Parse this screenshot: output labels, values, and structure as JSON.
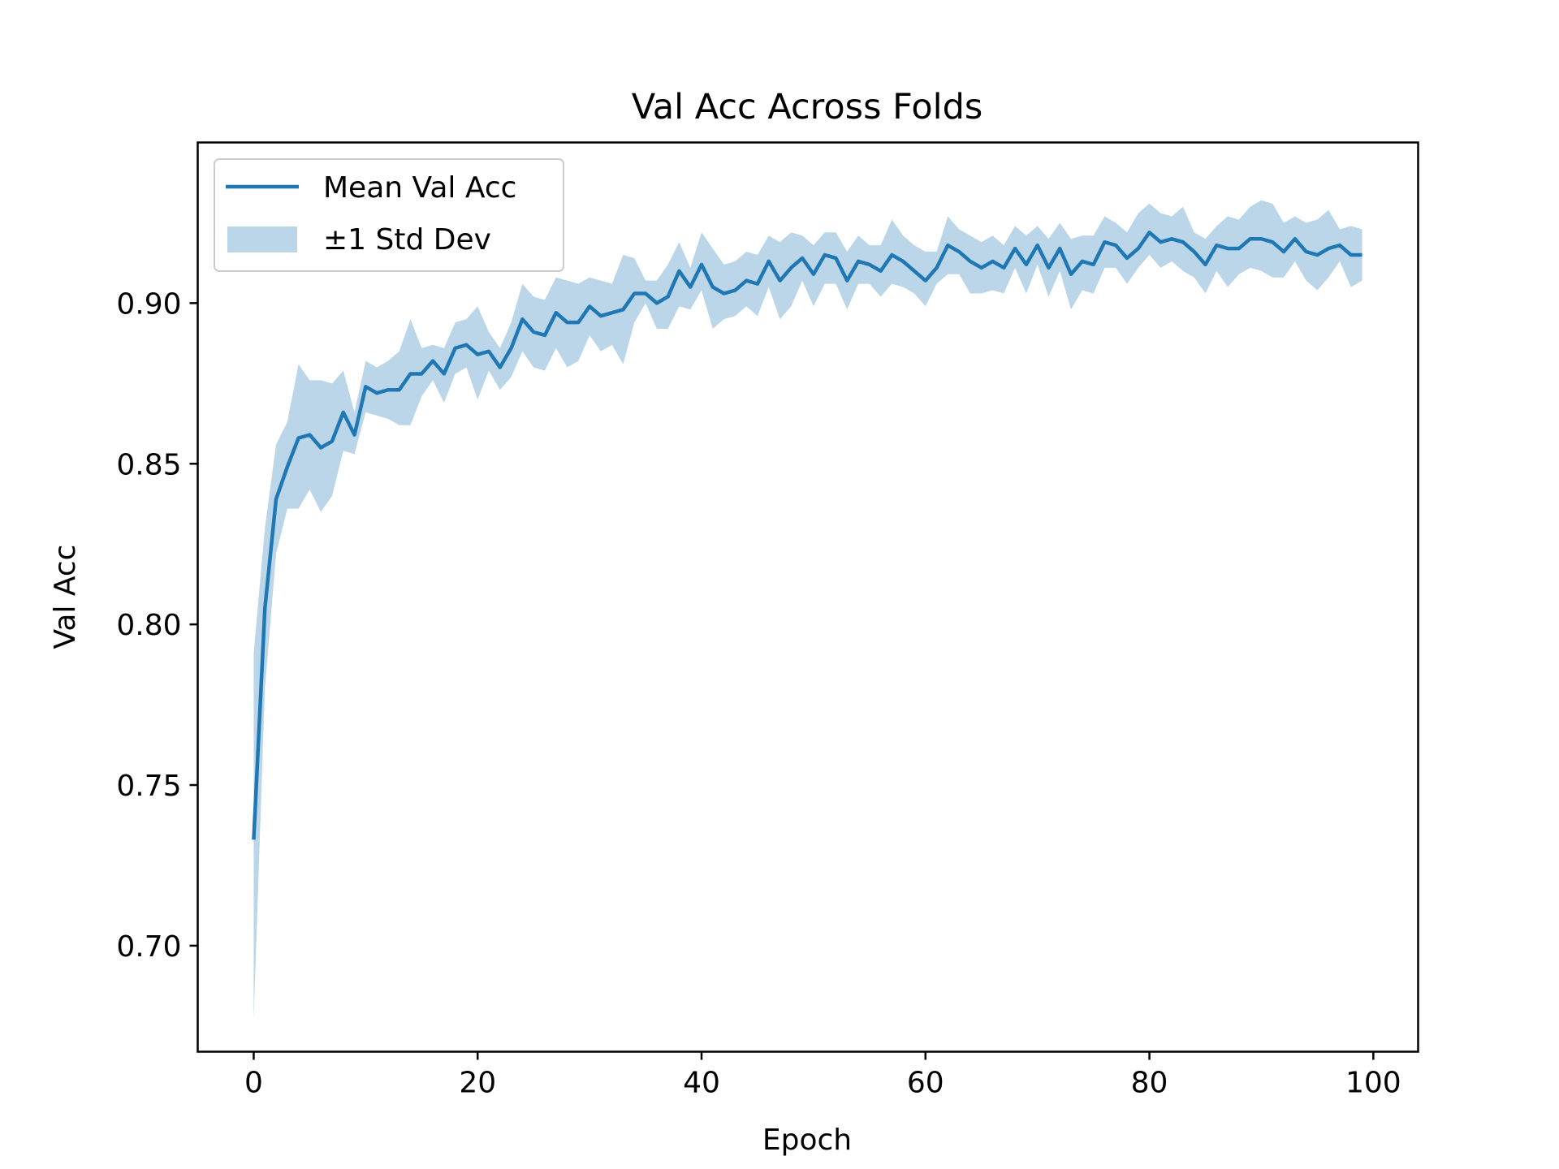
{
  "chart_data": {
    "type": "line",
    "title": "Val Acc Across Folds",
    "xlabel": "Epoch",
    "ylabel": "Val Acc",
    "xlim": [
      -5,
      104
    ],
    "ylim": [
      0.667,
      0.95
    ],
    "xticks": [
      0,
      20,
      40,
      60,
      80,
      100
    ],
    "xtick_labels": [
      "0",
      "20",
      "40",
      "60",
      "80",
      "100"
    ],
    "yticks": [
      0.7,
      0.75,
      0.8,
      0.85,
      0.9
    ],
    "ytick_labels": [
      "0.70",
      "0.75",
      "0.80",
      "0.85",
      "0.90"
    ],
    "grid": false,
    "legend": {
      "placement": "upper-left",
      "entries": [
        "Mean Val Acc",
        "±1 Std Dev"
      ]
    },
    "colors": {
      "line": "#1f77b4",
      "band": "#1f77b4"
    },
    "x": [
      0,
      1,
      2,
      3,
      4,
      5,
      6,
      7,
      8,
      9,
      10,
      11,
      12,
      13,
      14,
      15,
      16,
      17,
      18,
      19,
      20,
      21,
      22,
      23,
      24,
      25,
      26,
      27,
      28,
      29,
      30,
      31,
      32,
      33,
      34,
      35,
      36,
      37,
      38,
      39,
      40,
      41,
      42,
      43,
      44,
      45,
      46,
      47,
      48,
      49,
      50,
      51,
      52,
      53,
      54,
      55,
      56,
      57,
      58,
      59,
      60,
      61,
      62,
      63,
      64,
      65,
      66,
      67,
      68,
      69,
      70,
      71,
      72,
      73,
      74,
      75,
      76,
      77,
      78,
      79,
      80,
      81,
      82,
      83,
      84,
      85,
      86,
      87,
      88,
      89,
      90,
      91,
      92,
      93,
      94,
      95,
      96,
      97,
      98,
      99
    ],
    "series": [
      {
        "name": "Mean Val Acc",
        "values": [
          0.733,
          0.805,
          0.839,
          0.849,
          0.858,
          0.859,
          0.855,
          0.857,
          0.866,
          0.859,
          0.874,
          0.872,
          0.873,
          0.873,
          0.878,
          0.878,
          0.882,
          0.878,
          0.886,
          0.887,
          0.884,
          0.885,
          0.88,
          0.886,
          0.895,
          0.891,
          0.89,
          0.897,
          0.894,
          0.894,
          0.899,
          0.896,
          0.897,
          0.898,
          0.903,
          0.903,
          0.9,
          0.902,
          0.91,
          0.905,
          0.912,
          0.905,
          0.903,
          0.904,
          0.907,
          0.906,
          0.913,
          0.907,
          0.911,
          0.914,
          0.909,
          0.915,
          0.914,
          0.907,
          0.913,
          0.912,
          0.91,
          0.915,
          0.913,
          0.91,
          0.907,
          0.911,
          0.918,
          0.916,
          0.913,
          0.911,
          0.913,
          0.911,
          0.917,
          0.912,
          0.918,
          0.911,
          0.917,
          0.909,
          0.913,
          0.912,
          0.919,
          0.918,
          0.914,
          0.917,
          0.922,
          0.919,
          0.92,
          0.919,
          0.916,
          0.912,
          0.918,
          0.917,
          0.917,
          0.92,
          0.92,
          0.919,
          0.916,
          0.92,
          0.916,
          0.915,
          0.917,
          0.918,
          0.915,
          0.915
        ]
      }
    ],
    "band": {
      "name": "±1 Std Dev",
      "lower": [
        0.677,
        0.78,
        0.822,
        0.836,
        0.836,
        0.842,
        0.835,
        0.84,
        0.854,
        0.853,
        0.866,
        0.865,
        0.864,
        0.862,
        0.862,
        0.871,
        0.876,
        0.869,
        0.878,
        0.88,
        0.87,
        0.879,
        0.873,
        0.877,
        0.885,
        0.88,
        0.879,
        0.886,
        0.88,
        0.882,
        0.89,
        0.885,
        0.887,
        0.881,
        0.894,
        0.9,
        0.892,
        0.892,
        0.899,
        0.898,
        0.904,
        0.892,
        0.895,
        0.896,
        0.899,
        0.896,
        0.905,
        0.895,
        0.899,
        0.907,
        0.899,
        0.906,
        0.906,
        0.898,
        0.906,
        0.906,
        0.902,
        0.906,
        0.905,
        0.903,
        0.899,
        0.906,
        0.909,
        0.909,
        0.903,
        0.903,
        0.904,
        0.903,
        0.911,
        0.903,
        0.912,
        0.902,
        0.91,
        0.898,
        0.904,
        0.903,
        0.911,
        0.911,
        0.906,
        0.911,
        0.915,
        0.911,
        0.913,
        0.91,
        0.908,
        0.903,
        0.91,
        0.905,
        0.909,
        0.911,
        0.91,
        0.908,
        0.908,
        0.913,
        0.907,
        0.904,
        0.908,
        0.913,
        0.905,
        0.907
      ],
      "upper": [
        0.791,
        0.83,
        0.856,
        0.863,
        0.881,
        0.876,
        0.876,
        0.875,
        0.879,
        0.866,
        0.882,
        0.88,
        0.882,
        0.885,
        0.895,
        0.886,
        0.887,
        0.886,
        0.894,
        0.895,
        0.899,
        0.891,
        0.886,
        0.894,
        0.906,
        0.902,
        0.901,
        0.908,
        0.907,
        0.906,
        0.908,
        0.907,
        0.906,
        0.915,
        0.914,
        0.907,
        0.907,
        0.912,
        0.919,
        0.911,
        0.922,
        0.917,
        0.912,
        0.913,
        0.916,
        0.915,
        0.921,
        0.919,
        0.922,
        0.921,
        0.918,
        0.922,
        0.922,
        0.916,
        0.921,
        0.918,
        0.918,
        0.926,
        0.921,
        0.918,
        0.916,
        0.916,
        0.927,
        0.923,
        0.921,
        0.919,
        0.921,
        0.918,
        0.924,
        0.921,
        0.924,
        0.92,
        0.925,
        0.92,
        0.921,
        0.921,
        0.927,
        0.925,
        0.922,
        0.928,
        0.931,
        0.928,
        0.927,
        0.93,
        0.922,
        0.92,
        0.924,
        0.927,
        0.926,
        0.93,
        0.932,
        0.931,
        0.925,
        0.927,
        0.925,
        0.926,
        0.929,
        0.923,
        0.924,
        0.923
      ]
    }
  }
}
